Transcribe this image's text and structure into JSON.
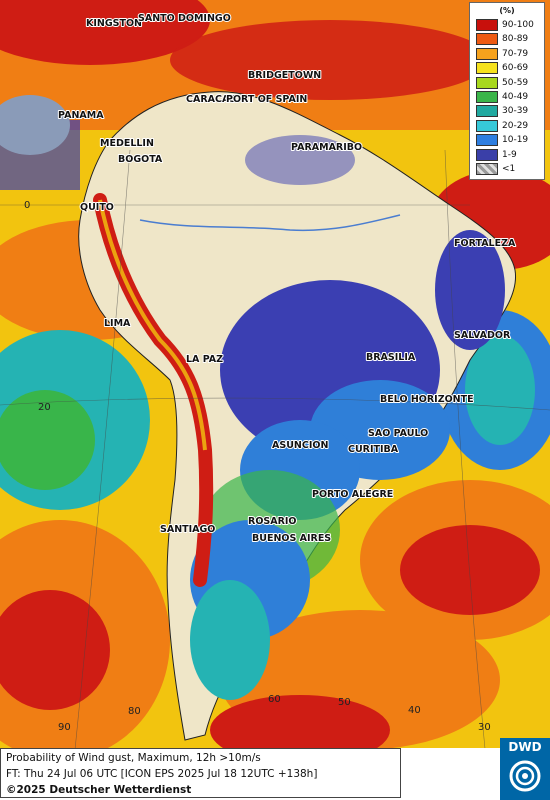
{
  "map": {
    "cities": [
      {
        "name": "KINGSTON"
      },
      {
        "name": "SANTO DOMINGO"
      },
      {
        "name": "BRIDGETOWN"
      },
      {
        "name": "PANAMA"
      },
      {
        "name": "CARACAS"
      },
      {
        "name": "PORT OF SPAIN"
      },
      {
        "name": "MEDELLIN"
      },
      {
        "name": "BOGOTA"
      },
      {
        "name": "PARAMARIBO"
      },
      {
        "name": "QUITO"
      },
      {
        "name": "FORTALEZA"
      },
      {
        "name": "LIMA"
      },
      {
        "name": "SALVADOR"
      },
      {
        "name": "LA PAZ"
      },
      {
        "name": "BRASILIA"
      },
      {
        "name": "BELO HORIZONTE"
      },
      {
        "name": "SAO PAULO"
      },
      {
        "name": "ASUNCION"
      },
      {
        "name": "CURITIBA"
      },
      {
        "name": "PORTO ALEGRE"
      },
      {
        "name": "ROSARIO"
      },
      {
        "name": "BUENOS AIRES"
      },
      {
        "name": "SANTIAGO"
      }
    ],
    "grid_labels": {
      "latitudes": [
        "0",
        "20"
      ],
      "longitudes": [
        "90",
        "80",
        "60",
        "50",
        "40",
        "30"
      ]
    },
    "colors": {
      "ocean_high": "#cf1d14",
      "ocean_orange": "#f07e14",
      "ocean_yellow": "#f2c40f",
      "ocean_green": "#39b54a",
      "ocean_cyan": "#25b3b3",
      "blue": "#2f7fd8",
      "dark_blue": "#3b3fb2",
      "land": "#efe6c8"
    }
  },
  "legend": {
    "unit": "(%)",
    "entries": [
      {
        "label": "90-100",
        "color": "#c8100c"
      },
      {
        "label": "80-89",
        "color": "#ee5a12"
      },
      {
        "label": "70-79",
        "color": "#f6a21d"
      },
      {
        "label": "60-69",
        "color": "#f6e21e"
      },
      {
        "label": "50-59",
        "color": "#a8d81e"
      },
      {
        "label": "40-49",
        "color": "#3bb54a"
      },
      {
        "label": "30-39",
        "color": "#20a9a0"
      },
      {
        "label": "20-29",
        "color": "#36c8d8"
      },
      {
        "label": "10-19",
        "color": "#2e7ee0"
      },
      {
        "label": "1-9",
        "color": "#3a3fa8"
      },
      {
        "label": "<1",
        "color": "#bfbfbf"
      }
    ]
  },
  "footer": {
    "line1": "Probability of Wind gust, Maximum, 12h >10m/s",
    "line2": "FT: Thu 24 Jul 06 UTC [ICON EPS 2025 Jul 18 12UTC +138h]",
    "copyright": "©2025 Deutscher Wetterdienst"
  },
  "logo": {
    "text": "DWD"
  }
}
